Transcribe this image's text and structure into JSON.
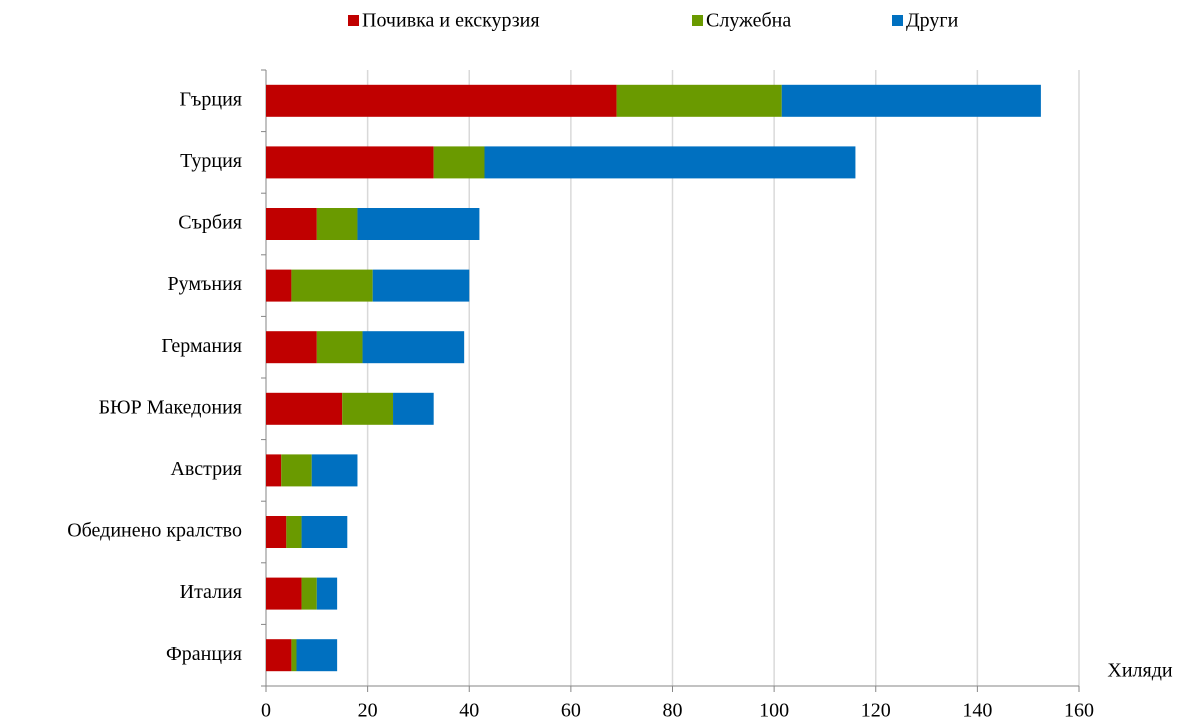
{
  "chart_data": {
    "type": "hbar_stacked",
    "categories": [
      "Гърция",
      "Турция",
      "Сърбия",
      "Румъния",
      "Германия",
      "БЮР Македония",
      "Австрия",
      "Обединено кралство",
      "Италия",
      "Франция"
    ],
    "series": [
      {
        "name": "Почивка и екскурзия",
        "color": "#c00000",
        "values": [
          69,
          33,
          10,
          5,
          10,
          15,
          3,
          4,
          7,
          5
        ]
      },
      {
        "name": "Служебна",
        "color": "#6a9a00",
        "values": [
          32.5,
          10,
          8,
          16,
          9,
          10,
          6,
          3,
          3,
          1
        ]
      },
      {
        "name": "Други",
        "color": "#0070c0",
        "values": [
          51,
          73,
          24,
          19,
          20,
          8,
          9,
          9,
          4,
          8
        ]
      }
    ],
    "xlabel": "Хиляди",
    "xlim": [
      0,
      160
    ],
    "xticks": [
      0,
      20,
      40,
      60,
      80,
      100,
      120,
      140,
      160
    ],
    "grid": true,
    "legend": "top"
  }
}
